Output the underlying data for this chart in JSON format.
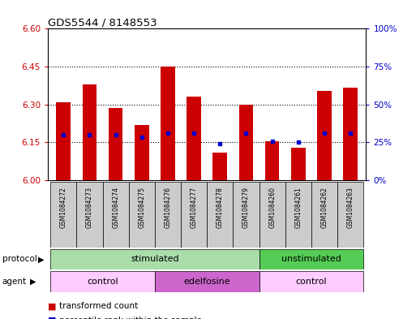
{
  "title": "GDS5544 / 8148553",
  "samples": [
    "GSM1084272",
    "GSM1084273",
    "GSM1084274",
    "GSM1084275",
    "GSM1084276",
    "GSM1084277",
    "GSM1084278",
    "GSM1084279",
    "GSM1084260",
    "GSM1084261",
    "GSM1084262",
    "GSM1084263"
  ],
  "bar_values": [
    6.31,
    6.38,
    6.285,
    6.22,
    6.45,
    6.33,
    6.11,
    6.3,
    6.155,
    6.13,
    6.355,
    6.365
  ],
  "bar_base": 6.0,
  "percentile_values": [
    6.18,
    6.18,
    6.18,
    6.17,
    6.185,
    6.185,
    6.145,
    6.185,
    6.155,
    6.15,
    6.185,
    6.185
  ],
  "bar_color": "#cc0000",
  "percentile_color": "#0000cc",
  "ylim": [
    6.0,
    6.6
  ],
  "yticks": [
    6.0,
    6.15,
    6.3,
    6.45,
    6.6
  ],
  "right_yticks": [
    0,
    25,
    50,
    75,
    100
  ],
  "right_ylabels": [
    "0%",
    "25%",
    "50%",
    "75%",
    "100%"
  ],
  "ylabel_color": "#cc0000",
  "right_ylabel_color": "#0000cc",
  "bg_color": "#ffffff",
  "bar_width": 0.55,
  "sample_box_color": "#cccccc",
  "proto_stim_color": "#aaddaa",
  "proto_unstim_color": "#55cc55",
  "agent_control_color": "#ffccff",
  "agent_edel_color": "#cc66cc",
  "legend_bar_color": "#cc0000",
  "legend_dot_color": "#0000cc"
}
